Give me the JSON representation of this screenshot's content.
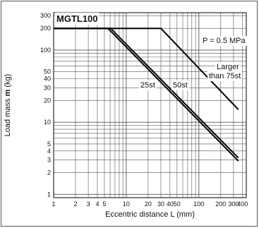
{
  "chart_data": {
    "type": "line",
    "title": "MGTL100",
    "xlabel": "Eccentric distance L (mm)",
    "ylabel_prefix": "Load mass ",
    "ylabel_var": "m",
    "ylabel_suffix": " (kg)",
    "xscale": "log",
    "yscale": "log",
    "xlim": [
      1,
      450
    ],
    "ylim": [
      0.9,
      330
    ],
    "grid": true,
    "x_ticks": [
      {
        "value": 1,
        "label": "1"
      },
      {
        "value": 2,
        "label": "2"
      },
      {
        "value": 3,
        "label": "3"
      },
      {
        "value": 4,
        "label": "4"
      },
      {
        "value": 5,
        "label": "5"
      },
      {
        "value": 10,
        "label": "10"
      },
      {
        "value": 20,
        "label": "20"
      },
      {
        "value": 30,
        "label": "30"
      },
      {
        "value": 40,
        "label": "40"
      },
      {
        "value": 50,
        "label": "50"
      },
      {
        "value": 100,
        "label": "100"
      },
      {
        "value": 200,
        "label": "200"
      },
      {
        "value": 300,
        "label": "300"
      },
      {
        "value": 400,
        "label": "400"
      }
    ],
    "y_ticks": [
      {
        "value": 1,
        "label": "1"
      },
      {
        "value": 2,
        "label": "2"
      },
      {
        "value": 3,
        "label": "3"
      },
      {
        "value": 4,
        "label": "4"
      },
      {
        "value": 5,
        "label": "5"
      },
      {
        "value": 10,
        "label": "10"
      },
      {
        "value": 20,
        "label": "20"
      },
      {
        "value": 30,
        "label": "30"
      },
      {
        "value": 40,
        "label": "40"
      },
      {
        "value": 50,
        "label": "50"
      },
      {
        "value": 100,
        "label": "100"
      },
      {
        "value": 200,
        "label": "200"
      },
      {
        "value": 300,
        "label": "300"
      }
    ],
    "series": [
      {
        "name": "25st",
        "x": [
          1,
          5.6,
          350
        ],
        "y": [
          200,
          200,
          2.9
        ]
      },
      {
        "name": "50st",
        "x": [
          1,
          6.1,
          350
        ],
        "y": [
          200,
          200,
          3.2
        ]
      },
      {
        "name": "Larger than 75st",
        "x": [
          1,
          30,
          350
        ],
        "y": [
          200,
          200,
          15
        ]
      }
    ],
    "annotations": {
      "pressure": "P = 0.5 MPa",
      "label_25st": "25st",
      "label_50st": "50st",
      "larger_line1": "Larger",
      "larger_line2": "than 75st"
    }
  }
}
